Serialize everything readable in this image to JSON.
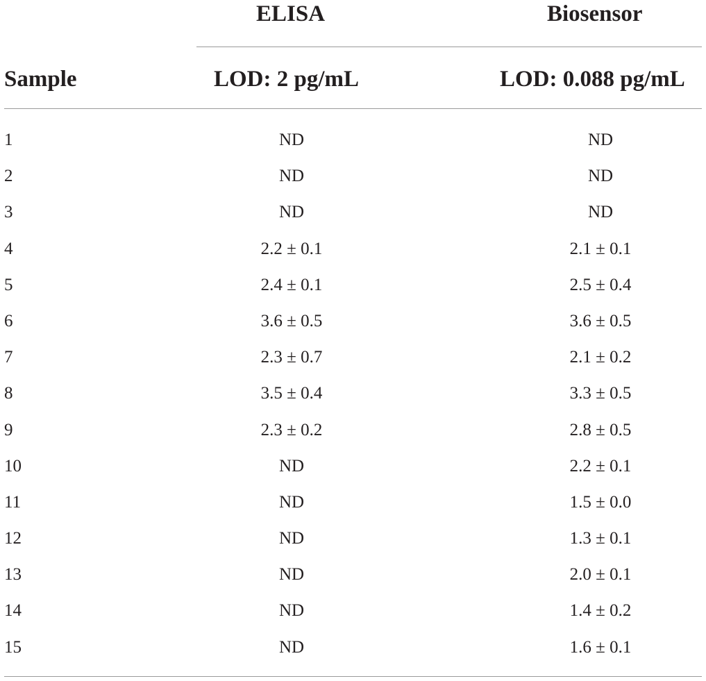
{
  "table": {
    "headers": {
      "group_elisa": "ELISA",
      "group_biosensor": "Biosensor",
      "sample": "Sample",
      "lod_elisa": "LOD: 2 pg/mL",
      "lod_biosensor": "LOD: 0.088 pg/mL"
    },
    "rows": [
      {
        "sample": "1",
        "elisa": "ND",
        "biosensor": "ND"
      },
      {
        "sample": "2",
        "elisa": "ND",
        "biosensor": "ND"
      },
      {
        "sample": "3",
        "elisa": "ND",
        "biosensor": "ND"
      },
      {
        "sample": "4",
        "elisa": "2.2 ± 0.1",
        "biosensor": "2.1 ± 0.1"
      },
      {
        "sample": "5",
        "elisa": "2.4 ± 0.1",
        "biosensor": "2.5 ± 0.4"
      },
      {
        "sample": "6",
        "elisa": "3.6 ± 0.5",
        "biosensor": "3.6 ± 0.5"
      },
      {
        "sample": "7",
        "elisa": "2.3 ± 0.7",
        "biosensor": "2.1 ± 0.2"
      },
      {
        "sample": "8",
        "elisa": "3.5 ± 0.4",
        "biosensor": "3.3 ± 0.5"
      },
      {
        "sample": "9",
        "elisa": "2.3 ± 0.2",
        "biosensor": "2.8 ± 0.5"
      },
      {
        "sample": "10",
        "elisa": "ND",
        "biosensor": "2.2 ± 0.1"
      },
      {
        "sample": "11",
        "elisa": "ND",
        "biosensor": "1.5 ± 0.0"
      },
      {
        "sample": "12",
        "elisa": "ND",
        "biosensor": "1.3 ± 0.1"
      },
      {
        "sample": "13",
        "elisa": "ND",
        "biosensor": "2.0 ± 0.1"
      },
      {
        "sample": "14",
        "elisa": "ND",
        "biosensor": "1.4 ± 0.2"
      },
      {
        "sample": "15",
        "elisa": "ND",
        "biosensor": "1.6 ± 0.1"
      }
    ]
  }
}
